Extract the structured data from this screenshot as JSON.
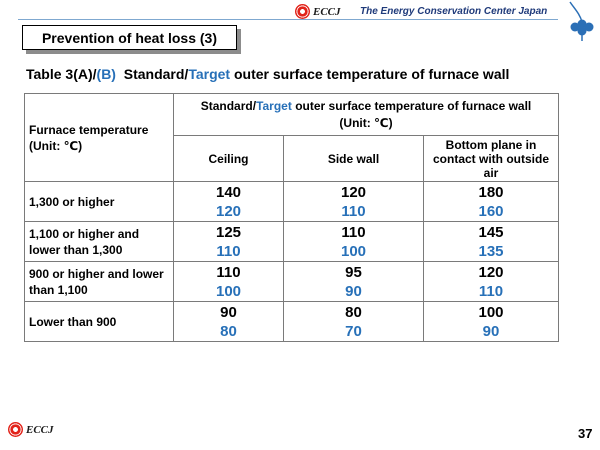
{
  "header": {
    "logo_text": "ECCJ",
    "organization": "The Energy Conservation Center Japan"
  },
  "footer": {
    "logo_text": "ECCJ",
    "page_number": "37"
  },
  "slide_title": "Prevention of heat loss (3)",
  "caption": {
    "prefix": "Table 3(A)/",
    "tag_b": "(B)",
    "mid": "  Standard/",
    "target_word": "Target",
    "suffix": " outer surface temperature of furnace wall"
  },
  "table": {
    "furnace_temp_header": "Furnace temperature",
    "furnace_temp_unit": "(Unit: ℃)",
    "group_header_standard": "Standard/",
    "group_header_target": "Target",
    "group_header_rest": " outer surface temperature of furnace wall",
    "group_header_unit": "(Unit: ℃)",
    "columns": [
      "Ceiling",
      "Side wall",
      "Bottom plane in contact with outside air"
    ],
    "rows": [
      {
        "label": "1,300 or higher",
        "standard": [
          "140",
          "120",
          "180"
        ],
        "target": [
          "120",
          "110",
          "160"
        ]
      },
      {
        "label": "1,100 or higher and lower than 1,300",
        "standard": [
          "125",
          "110",
          "145"
        ],
        "target": [
          "110",
          "100",
          "135"
        ]
      },
      {
        "label": "900 or higher and lower than 1,100",
        "standard": [
          "110",
          "95",
          "120"
        ],
        "target": [
          "100",
          "90",
          "110"
        ]
      },
      {
        "label": "Lower than 900",
        "standard": [
          "90",
          "80",
          "100"
        ],
        "target": [
          "80",
          "70",
          "90"
        ]
      }
    ]
  },
  "colors": {
    "target_blue": "#2770b8",
    "logo_red": "#e2231a",
    "header_line": "#7fa8d0",
    "clover": "#2b6fb6"
  },
  "icons": {
    "header_logo": "ecc-sun-icon",
    "corner": "clover-icon"
  }
}
